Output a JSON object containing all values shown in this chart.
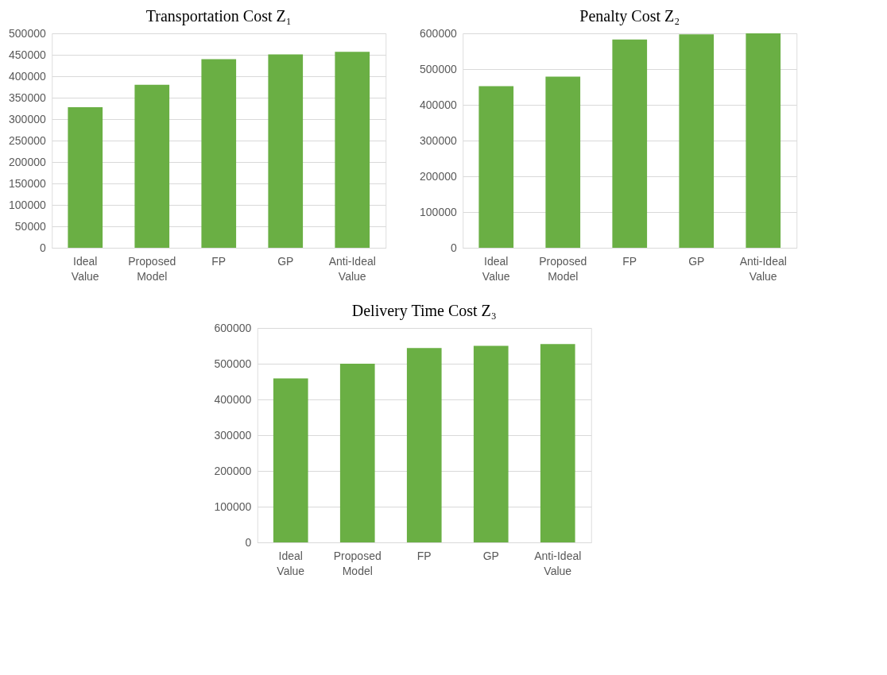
{
  "chart_data": [
    {
      "type": "bar",
      "title": "Transportation Cost Z₁",
      "categories": [
        "Ideal Value",
        "Proposed Model",
        "FP",
        "GP",
        "Anti-Ideal Value"
      ],
      "values": [
        328000,
        380000,
        440000,
        451000,
        457000
      ],
      "color": "#6aaf44",
      "ylim": [
        0,
        500000
      ],
      "yticks": [
        0,
        50000,
        100000,
        150000,
        200000,
        250000,
        300000,
        350000,
        400000,
        450000,
        500000
      ],
      "grid": "y"
    },
    {
      "type": "bar",
      "title": "Penalty Cost Z₂",
      "categories": [
        "Ideal Value",
        "Proposed Model",
        "FP",
        "GP",
        "Anti-Ideal Value"
      ],
      "values": [
        452000,
        479000,
        583000,
        597000,
        600000
      ],
      "color": "#6aaf44",
      "ylim": [
        0,
        600000
      ],
      "yticks": [
        0,
        100000,
        200000,
        300000,
        400000,
        500000,
        600000
      ],
      "grid": "y"
    },
    {
      "type": "bar",
      "title": "Delivery Time Cost Z₃",
      "categories": [
        "Ideal Value",
        "Proposed Model",
        "FP",
        "GP",
        "Anti-Ideal Value"
      ],
      "values": [
        459000,
        500000,
        544000,
        550000,
        555000
      ],
      "color": "#6aaf44",
      "ylim": [
        0,
        600000
      ],
      "yticks": [
        0,
        100000,
        200000,
        300000,
        400000,
        500000,
        600000
      ],
      "grid": "y"
    }
  ]
}
